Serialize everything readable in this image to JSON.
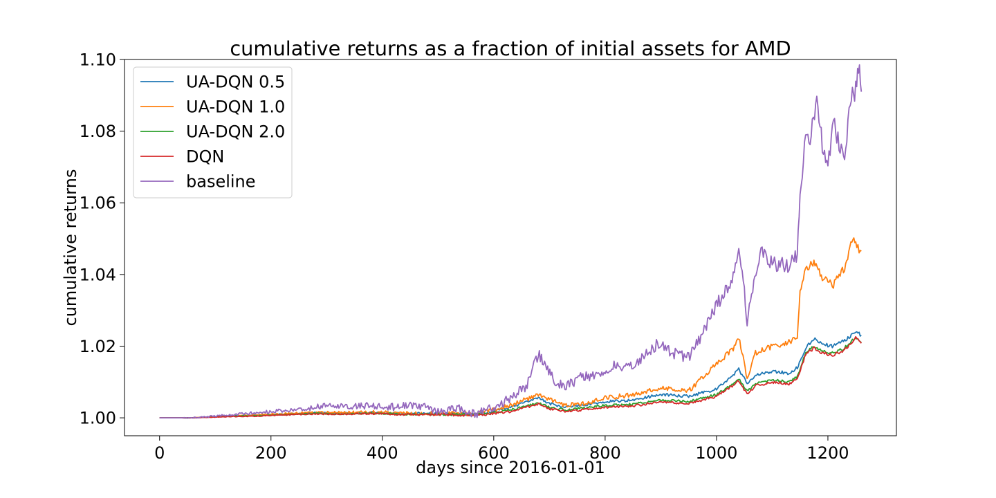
{
  "chart_data": {
    "type": "line",
    "title": "cumulative returns as a fraction of initial assets for AMD",
    "xlabel": "days since 2016-01-01",
    "ylabel": "cumulative returns",
    "xlim": [
      -63,
      1323
    ],
    "ylim": [
      0.995,
      1.1
    ],
    "xticks": [
      0,
      200,
      400,
      600,
      800,
      1000,
      1200
    ],
    "yticks": [
      1.0,
      1.02,
      1.04,
      1.06,
      1.08,
      1.1
    ],
    "ytick_labels": [
      "1.00",
      "1.02",
      "1.04",
      "1.06",
      "1.08",
      "1.10"
    ],
    "grid": false,
    "legend_position": "upper-left",
    "series": [
      {
        "name": "UA-DQN 0.5",
        "color": "#1f77b4",
        "x": [
          0,
          60,
          120,
          180,
          240,
          280,
          330,
          380,
          440,
          500,
          560,
          590,
          630,
          680,
          700,
          730,
          760,
          800,
          850,
          900,
          950,
          1000,
          1030,
          1040,
          1055,
          1070,
          1100,
          1130,
          1145,
          1160,
          1175,
          1190,
          1210,
          1230,
          1250,
          1260
        ],
        "y": [
          1.0,
          1.0,
          1.0005,
          1.0008,
          1.0012,
          1.0014,
          1.0013,
          1.0015,
          1.0012,
          1.0012,
          1.001,
          1.0015,
          1.003,
          1.0055,
          1.004,
          1.003,
          1.0035,
          1.0045,
          1.005,
          1.0065,
          1.006,
          1.008,
          1.012,
          1.0135,
          1.0095,
          1.012,
          1.013,
          1.0125,
          1.014,
          1.0195,
          1.022,
          1.0205,
          1.02,
          1.0215,
          1.024,
          1.023
        ]
      },
      {
        "name": "UA-DQN 1.0",
        "color": "#ff7f0e",
        "x": [
          0,
          60,
          120,
          180,
          240,
          280,
          330,
          380,
          440,
          500,
          560,
          590,
          630,
          680,
          700,
          730,
          760,
          800,
          850,
          900,
          950,
          1000,
          1030,
          1040,
          1055,
          1070,
          1100,
          1130,
          1145,
          1150,
          1160,
          1175,
          1190,
          1210,
          1230,
          1245,
          1250,
          1260
        ],
        "y": [
          1.0,
          1.0,
          1.0005,
          1.0008,
          1.0013,
          1.0015,
          1.0014,
          1.0016,
          1.0013,
          1.0013,
          1.001,
          1.0018,
          1.0035,
          1.0065,
          1.005,
          1.0035,
          1.004,
          1.0055,
          1.0065,
          1.0085,
          1.0075,
          1.015,
          1.0195,
          1.0225,
          1.011,
          1.018,
          1.02,
          1.021,
          1.023,
          1.035,
          1.041,
          1.0435,
          1.039,
          1.037,
          1.042,
          1.0505,
          1.048,
          1.0465
        ]
      },
      {
        "name": "UA-DQN 2.0",
        "color": "#2ca02c",
        "x": [
          0,
          60,
          120,
          180,
          240,
          280,
          330,
          380,
          440,
          500,
          560,
          590,
          630,
          680,
          700,
          730,
          760,
          800,
          850,
          900,
          950,
          1000,
          1030,
          1040,
          1055,
          1070,
          1100,
          1130,
          1145,
          1160,
          1175,
          1190,
          1210,
          1230,
          1250,
          1260
        ],
        "y": [
          1.0,
          1.0,
          1.0004,
          1.0006,
          1.001,
          1.0012,
          1.0011,
          1.0013,
          1.001,
          1.001,
          1.0008,
          1.0012,
          1.0022,
          1.0042,
          1.003,
          1.0022,
          1.0027,
          1.0035,
          1.0038,
          1.005,
          1.0045,
          1.0065,
          1.0095,
          1.011,
          1.0075,
          1.0095,
          1.0105,
          1.01,
          1.0115,
          1.018,
          1.02,
          1.0185,
          1.018,
          1.0195,
          1.0225,
          1.021
        ]
      },
      {
        "name": "DQN",
        "color": "#d62728",
        "x": [
          0,
          60,
          120,
          180,
          240,
          280,
          330,
          380,
          440,
          500,
          560,
          590,
          630,
          680,
          700,
          730,
          760,
          800,
          850,
          900,
          950,
          1000,
          1030,
          1040,
          1055,
          1070,
          1100,
          1130,
          1145,
          1160,
          1175,
          1190,
          1210,
          1230,
          1250,
          1260
        ],
        "y": [
          1.0,
          1.0,
          1.0003,
          1.0005,
          1.0009,
          1.0011,
          1.001,
          1.0012,
          1.0009,
          1.0009,
          1.0007,
          1.001,
          1.0018,
          1.0038,
          1.0025,
          1.0018,
          1.0022,
          1.003,
          1.0033,
          1.0045,
          1.004,
          1.006,
          1.009,
          1.0105,
          1.0065,
          1.009,
          1.01,
          1.0095,
          1.011,
          1.0175,
          1.0195,
          1.018,
          1.0175,
          1.019,
          1.0222,
          1.0208
        ]
      },
      {
        "name": "baseline",
        "color": "#9467bd",
        "x": [
          0,
          60,
          100,
          140,
          180,
          220,
          260,
          300,
          340,
          380,
          420,
          460,
          500,
          540,
          570,
          600,
          630,
          660,
          680,
          695,
          710,
          730,
          760,
          790,
          820,
          850,
          880,
          900,
          920,
          950,
          970,
          990,
          1010,
          1030,
          1040,
          1050,
          1055,
          1065,
          1080,
          1090,
          1110,
          1130,
          1145,
          1150,
          1160,
          1170,
          1180,
          1190,
          1200,
          1210,
          1220,
          1230,
          1240,
          1250,
          1255,
          1260
        ],
        "y": [
          1.0,
          1.0,
          1.0005,
          1.001,
          1.0015,
          1.002,
          1.0025,
          1.0035,
          1.003,
          1.0035,
          1.003,
          1.0035,
          1.002,
          1.0025,
          1.001,
          1.003,
          1.0055,
          1.009,
          1.018,
          1.014,
          1.01,
          1.009,
          1.0115,
          1.012,
          1.015,
          1.014,
          1.019,
          1.021,
          1.018,
          1.017,
          1.022,
          1.029,
          1.034,
          1.039,
          1.048,
          1.035,
          1.027,
          1.036,
          1.046,
          1.044,
          1.043,
          1.042,
          1.046,
          1.062,
          1.08,
          1.079,
          1.091,
          1.076,
          1.071,
          1.084,
          1.076,
          1.07,
          1.087,
          1.092,
          1.098,
          1.091
        ]
      }
    ]
  }
}
